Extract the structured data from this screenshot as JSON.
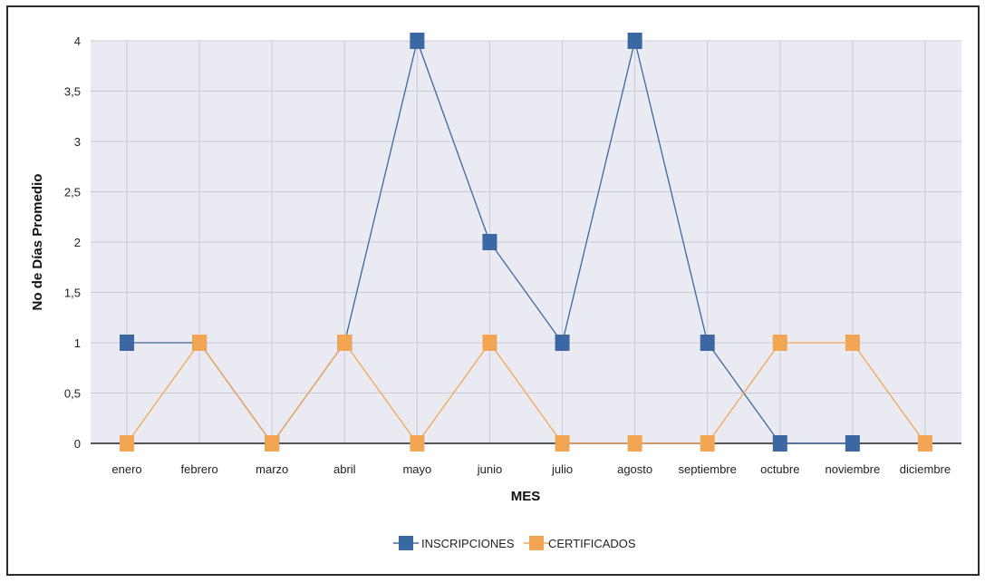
{
  "chart_data": {
    "type": "line",
    "title": "",
    "xlabel": "MES",
    "ylabel": "No de Días Promedio",
    "categories": [
      "enero",
      "febrero",
      "marzo",
      "abril",
      "mayo",
      "junio",
      "julio",
      "agosto",
      "septiembre",
      "octubre",
      "noviembre",
      "diciembre"
    ],
    "ylim": [
      0,
      4
    ],
    "yticks": [
      "0",
      "0,5",
      "1",
      "1,5",
      "2",
      "2,5",
      "3",
      "3,5",
      "4"
    ],
    "grid": true,
    "legend_position": "bottom-center",
    "plot_background": "#e9eaf2",
    "series": [
      {
        "name": "INSCRIPCIONES",
        "color": "#3b67a3",
        "values": [
          1,
          1,
          0,
          1,
          4,
          2,
          1,
          4,
          1,
          0,
          0,
          null
        ]
      },
      {
        "name": "CERTIFICADOS",
        "color": "#f2a654",
        "values": [
          0,
          1,
          0,
          1,
          0,
          1,
          0,
          0,
          0,
          1,
          1,
          0
        ]
      }
    ]
  }
}
